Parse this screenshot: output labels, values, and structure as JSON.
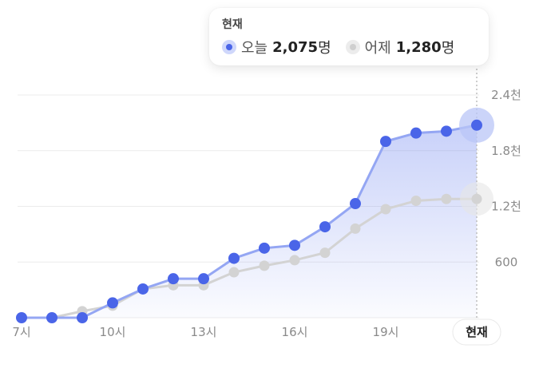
{
  "tooltip": {
    "title": "현재",
    "today_label": "오늘",
    "today_value": "2,075",
    "yesterday_label": "어제",
    "yesterday_value": "1,280",
    "unit": "명"
  },
  "colors": {
    "today": "#4a65e8",
    "today_line": "#94a6f3",
    "yesterday": "#d3d3d3",
    "grid": "#ececec",
    "axis_text": "#8a8a8a"
  },
  "chart_data": {
    "type": "line",
    "x": [
      "7시",
      "8시",
      "9시",
      "10시",
      "11시",
      "12시",
      "13시",
      "14시",
      "15시",
      "16시",
      "17시",
      "18시",
      "19시",
      "20시",
      "21시",
      "현재"
    ],
    "x_tick_labels": [
      "7시",
      "10시",
      "13시",
      "16시",
      "19시",
      "현재"
    ],
    "y_tick_labels": [
      "600",
      "1.2천",
      "1.8천",
      "2.4천"
    ],
    "y_ticks": [
      600,
      1200,
      1800,
      2400
    ],
    "ylim": [
      0,
      2400
    ],
    "series": [
      {
        "name": "오늘",
        "values": [
          0,
          0,
          0,
          160,
          310,
          420,
          420,
          640,
          750,
          780,
          980,
          1230,
          1900,
          1990,
          2010,
          2075
        ]
      },
      {
        "name": "어제",
        "values": [
          0,
          0,
          70,
          130,
          310,
          350,
          350,
          490,
          560,
          620,
          700,
          960,
          1170,
          1260,
          1280,
          1280
        ]
      }
    ],
    "grid": true,
    "area_fill": "today",
    "highlight": "현재"
  }
}
